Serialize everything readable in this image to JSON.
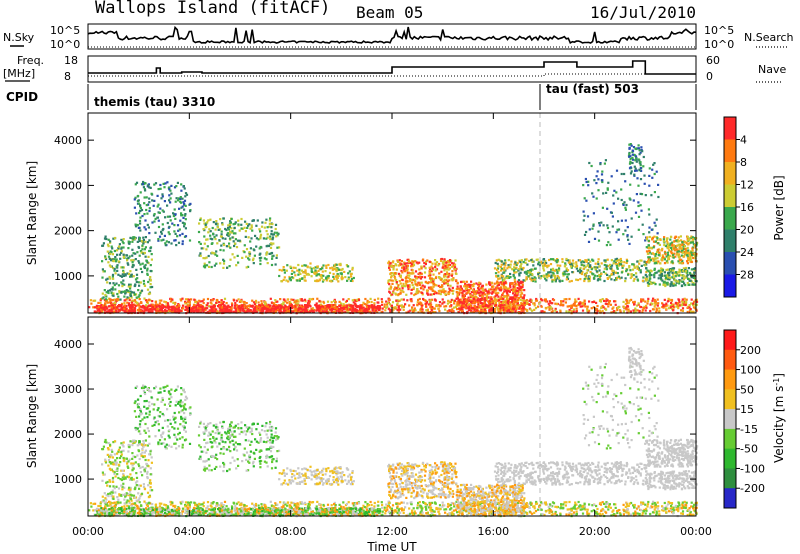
{
  "header": {
    "station": "Wallops Island (fitACF)",
    "beam": "Beam 05",
    "date": "16/Jul/2010"
  },
  "strip": {
    "nsky_label": "N.Sky",
    "nsky_ticks": [
      "10^5",
      "10^0"
    ],
    "nsearch_label": "N.Search",
    "nsearch_ticks": [
      "10^5",
      "10^0"
    ],
    "freq_label_1": "Freq.",
    "freq_label_2": "[MHz]",
    "freq_ticks": [
      "18",
      "8"
    ],
    "nave_label": "Nave",
    "nave_ticks": [
      "60",
      "0"
    ],
    "cpid_label": "CPID",
    "cpid_segments": [
      {
        "label": "themis (tau) 3310",
        "start_hour": 0
      },
      {
        "label": "tau (fast) 503",
        "start_hour": 18
      }
    ]
  },
  "chart_data": [
    {
      "type": "heatmap",
      "title": "",
      "xlabel": "Time UT",
      "ylabel": "Slant Range [km]",
      "x_range_hours": [
        0,
        24
      ],
      "x_tick_labels": [
        "00:00",
        "04:00",
        "08:00",
        "12:00",
        "16:00",
        "20:00",
        "00:00"
      ],
      "ylim": [
        180,
        4600
      ],
      "y_tick_labels": [
        "1000",
        "2000",
        "3000",
        "4000"
      ],
      "colorbar_label": "Power [dB]",
      "colorbar_ticks": [
        "4",
        "8",
        "12",
        "16",
        "20",
        "24",
        "28"
      ],
      "colorbar_range": [
        0,
        32
      ],
      "colors": [
        "#1a1ae6",
        "#2a4fb0",
        "#2f7f6a",
        "#3aa84c",
        "#cccc33",
        "#f0b020",
        "#ff7a10",
        "#ff2a2a"
      ],
      "mode_change_hour": 18
    },
    {
      "type": "heatmap",
      "title": "",
      "xlabel": "Time UT",
      "ylabel": "Slant Range [km]",
      "x_range_hours": [
        0,
        24
      ],
      "x_tick_labels": [
        "00:00",
        "04:00",
        "08:00",
        "12:00",
        "16:00",
        "20:00",
        "00:00"
      ],
      "ylim": [
        180,
        4600
      ],
      "y_tick_labels": [
        "1000",
        "2000",
        "3000",
        "4000"
      ],
      "colorbar_label": "Velocity [m s^-1]",
      "colorbar_ticks": [
        "200",
        "100",
        "50",
        "15",
        "-15",
        "-50",
        "-100",
        "-200"
      ],
      "colors": [
        "#2828c8",
        "#2f8f3f",
        "#2fb82f",
        "#66cc33",
        "#c8c8c8",
        "#f0c020",
        "#ff9a10",
        "#ff5a10",
        "#ff1a1a"
      ],
      "mode_change_hour": 18
    }
  ]
}
